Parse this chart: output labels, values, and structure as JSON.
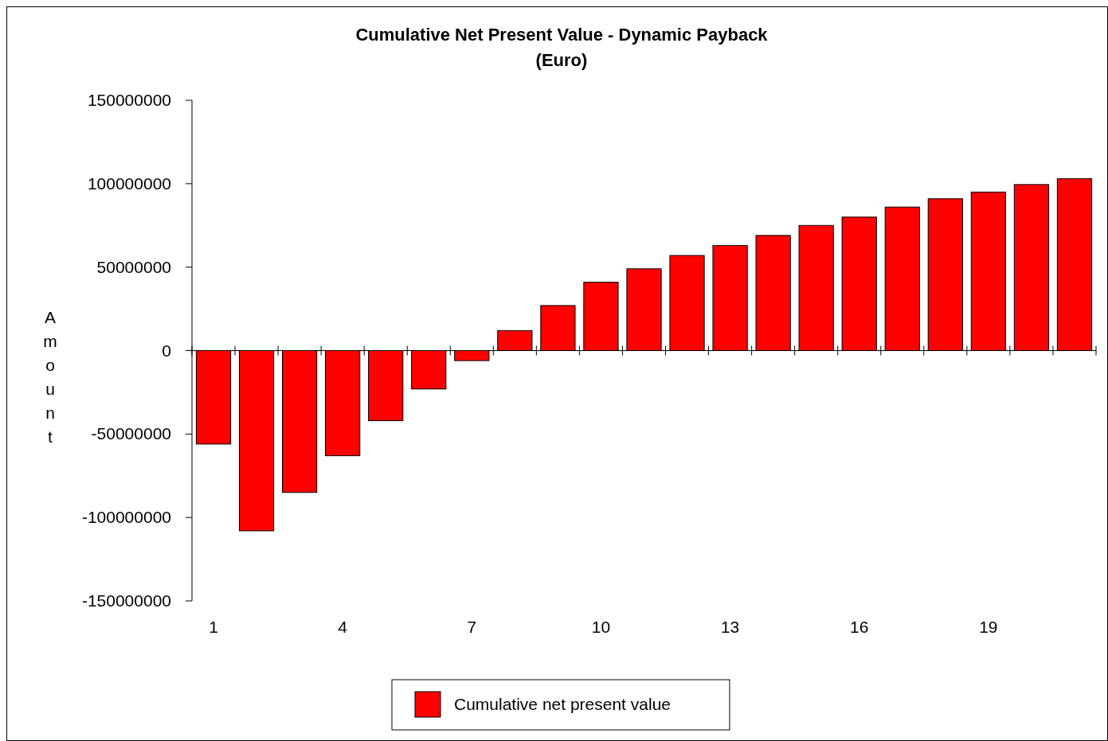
{
  "chart_data": {
    "type": "bar",
    "title": "Cumulative Net Present Value - Dynamic Payback",
    "subtitle": "(Euro)",
    "ylabel": "Amount",
    "categories": [
      "1",
      null,
      null,
      "4",
      null,
      null,
      "7",
      null,
      null,
      "10",
      null,
      null,
      "13",
      null,
      null,
      "16",
      null,
      null,
      "19",
      null,
      null
    ],
    "series": [
      {
        "name": "Cumulative net present value",
        "color": "#ff0000",
        "values": [
          -56000000,
          -108000000,
          -85000000,
          -63000000,
          -42000000,
          -23000000,
          -6000000,
          12000000,
          27000000,
          41000000,
          49000000,
          57000000,
          63000000,
          69000000,
          75000000,
          80000000,
          86000000,
          91000000,
          95000000,
          99500000,
          103000000
        ]
      }
    ],
    "ylim": [
      -150000000,
      150000000
    ],
    "yticks": [
      -150000000,
      -100000000,
      -50000000,
      0,
      50000000,
      100000000,
      150000000
    ],
    "grid": false,
    "ref_lines": [
      {
        "axis": "y",
        "value": 0,
        "color": "#000000",
        "line_style": "solid"
      }
    ],
    "legend": "bottom"
  }
}
